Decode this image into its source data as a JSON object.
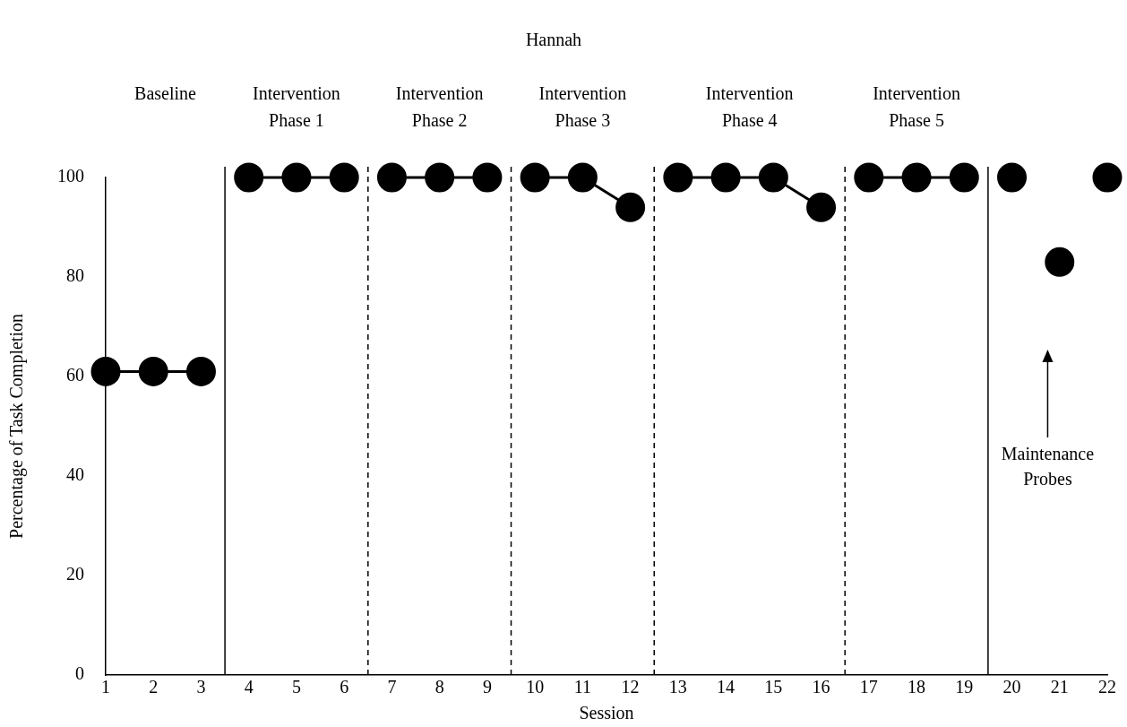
{
  "chart_data": {
    "type": "line",
    "title": "Hannah",
    "xlabel": "Session",
    "ylabel": "Percentage of Task Completion",
    "xlim": [
      1,
      22
    ],
    "xticks": [
      1,
      2,
      3,
      4,
      5,
      6,
      7,
      8,
      9,
      10,
      11,
      12,
      13,
      14,
      15,
      16,
      17,
      18,
      19,
      20,
      21,
      22
    ],
    "ylim": [
      0,
      100
    ],
    "yticks": [
      0,
      20,
      40,
      60,
      80,
      100
    ],
    "grid": false,
    "legend": false,
    "marker": "circle",
    "line_style": "solid",
    "series": [
      {
        "color": "#000000",
        "x": [
          1,
          2,
          3
        ],
        "values": [
          61,
          61,
          61
        ]
      },
      {
        "color": "#000000",
        "x": [
          4,
          5,
          6
        ],
        "values": [
          100,
          100,
          100
        ]
      },
      {
        "color": "#000000",
        "x": [
          7,
          8,
          9
        ],
        "values": [
          100,
          100,
          100
        ]
      },
      {
        "color": "#000000",
        "x": [
          10,
          11,
          12
        ],
        "values": [
          100,
          100,
          94
        ]
      },
      {
        "color": "#000000",
        "x": [
          13,
          14,
          15,
          16
        ],
        "values": [
          100,
          100,
          100,
          94
        ]
      },
      {
        "color": "#000000",
        "x": [
          17,
          18,
          19
        ],
        "values": [
          100,
          100,
          100
        ]
      },
      {
        "type": "scatter",
        "color": "#000000",
        "x": [
          20,
          21,
          22
        ],
        "values": [
          100,
          83,
          100
        ]
      }
    ],
    "ref_lines": [
      {
        "axis": "x",
        "value": 3.5,
        "line_style": "solid"
      },
      {
        "axis": "x",
        "value": 6.5,
        "line_style": "dashed"
      },
      {
        "axis": "x",
        "value": 9.5,
        "line_style": "dashed"
      },
      {
        "axis": "x",
        "value": 12.5,
        "line_style": "dashed"
      },
      {
        "axis": "x",
        "value": 16.5,
        "line_style": "dashed"
      },
      {
        "axis": "x",
        "value": 19.5,
        "line_style": "solid"
      }
    ],
    "annotations": [
      "Baseline",
      "Intervention Phase 1",
      "Intervention Phase 2",
      "Intervention Phase 3",
      "Intervention Phase 4",
      "Intervention Phase 5",
      "Maintenance Probes"
    ]
  }
}
